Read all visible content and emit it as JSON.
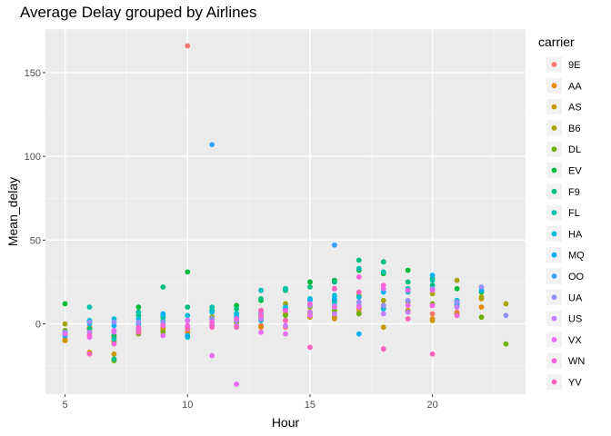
{
  "chart_data": {
    "type": "scatter",
    "title": "Average Delay grouped by Airlines",
    "xlabel": "Hour",
    "ylabel": "Mean_delay",
    "xlim": [
      4.2,
      23.8
    ],
    "ylim": [
      -42,
      176
    ],
    "x_ticks": [
      5,
      10,
      15,
      20
    ],
    "y_ticks": [
      0,
      50,
      100,
      150
    ],
    "grid": true,
    "legend_title": "carrier",
    "legend_position": "right",
    "series": [
      {
        "name": "9E",
        "color": "#F8766D",
        "x": [
          5,
          6,
          7,
          8,
          9,
          10,
          11,
          12,
          13,
          14,
          15,
          16,
          17,
          18,
          19,
          20,
          21
        ],
        "y": [
          -9,
          -3,
          -8,
          -4,
          -2,
          166,
          0,
          3,
          -1,
          -2,
          6,
          4,
          7,
          9,
          7,
          6,
          7
        ]
      },
      {
        "name": "AA",
        "color": "#E58700",
        "x": [
          5,
          6,
          7,
          8,
          9,
          10,
          11,
          12,
          13,
          14,
          15,
          16,
          17,
          18,
          19,
          20,
          21,
          22
        ],
        "y": [
          -10,
          -2,
          -10,
          -5,
          -4,
          -5,
          4,
          2,
          -2,
          2,
          7,
          4,
          9,
          11,
          8,
          3,
          6,
          10
        ]
      },
      {
        "name": "AS",
        "color": "#C99800",
        "x": [
          5,
          6,
          7,
          8,
          9,
          10,
          11,
          12,
          13,
          14,
          15,
          16,
          17,
          18,
          19,
          20,
          21,
          22
        ],
        "y": [
          -10,
          -17,
          -18,
          -3,
          -3,
          -2,
          -1,
          1,
          5,
          6,
          4,
          3,
          9,
          -2,
          8,
          2,
          6,
          15
        ]
      },
      {
        "name": "B6",
        "color": "#A3A500",
        "x": [
          5,
          6,
          7,
          8,
          9,
          10,
          11,
          12,
          13,
          14,
          15,
          16,
          17,
          18,
          19,
          20,
          21,
          22,
          23
        ],
        "y": [
          0,
          -3,
          -11,
          -3,
          0,
          2,
          4,
          3,
          8,
          12,
          10,
          14,
          17,
          14,
          13,
          18,
          26,
          16,
          12
        ]
      },
      {
        "name": "DL",
        "color": "#6BB100",
        "x": [
          5,
          6,
          7,
          8,
          9,
          10,
          11,
          12,
          13,
          14,
          15,
          16,
          17,
          18,
          19,
          20,
          21,
          22,
          23
        ],
        "y": [
          -4,
          -5,
          -22,
          -6,
          -5,
          -3,
          -1,
          1,
          4,
          5,
          6,
          8,
          6,
          9,
          7,
          12,
          11,
          4,
          -12
        ]
      },
      {
        "name": "EV",
        "color": "#00BA38",
        "x": [
          5,
          6,
          7,
          8,
          9,
          10,
          11,
          12,
          13,
          14,
          15,
          16,
          17,
          18,
          19,
          20,
          21,
          22
        ],
        "y": [
          12,
          2,
          -7,
          10,
          4,
          31,
          8,
          11,
          14,
          21,
          25,
          26,
          32,
          30,
          32,
          27,
          21,
          19
        ]
      },
      {
        "name": "F9",
        "color": "#00BF7D",
        "x": [
          5,
          6,
          7,
          8,
          9,
          10,
          11,
          12,
          13,
          14,
          15,
          16,
          17,
          18,
          19,
          20,
          21
        ],
        "y": [
          -5,
          -3,
          -21,
          5,
          22,
          10,
          8,
          9,
          15,
          20,
          22,
          25,
          38,
          37,
          25,
          23,
          14
        ]
      },
      {
        "name": "FL",
        "color": "#00C0AF",
        "x": [
          5,
          6,
          7,
          8,
          9,
          10,
          11,
          12,
          13,
          14,
          15,
          16,
          17,
          18,
          19,
          20,
          21
        ],
        "y": [
          -7,
          10,
          -9,
          7,
          2,
          -8,
          10,
          6,
          20,
          21,
          15,
          13,
          33,
          31,
          21,
          26,
          13
        ]
      },
      {
        "name": "HA",
        "color": "#00BCD8",
        "x": [
          5,
          6,
          7,
          8,
          9,
          10,
          11,
          12,
          13,
          14,
          15,
          16,
          17,
          18,
          19,
          20,
          21
        ],
        "y": [
          -5,
          2,
          3,
          3,
          5,
          5,
          7,
          6,
          2,
          10,
          15,
          17,
          16,
          9,
          19,
          21,
          14
        ]
      },
      {
        "name": "MQ",
        "color": "#00B0F6",
        "x": [
          5,
          6,
          7,
          8,
          9,
          10,
          11,
          12,
          13,
          14,
          15,
          16,
          17,
          18,
          19,
          20,
          21,
          22
        ],
        "y": [
          -7,
          0,
          -1,
          0,
          6,
          -7,
          3,
          4,
          6,
          9,
          14,
          15,
          -6,
          19,
          20,
          29,
          12,
          20
        ]
      },
      {
        "name": "OO",
        "color": "#35A2FF",
        "x": [
          11,
          16
        ],
        "y": [
          107,
          47
        ]
      },
      {
        "name": "UA",
        "color": "#9590FF",
        "x": [
          5,
          6,
          7,
          8,
          9,
          10,
          11,
          12,
          13,
          14,
          15,
          16,
          17,
          18,
          19,
          20,
          21,
          22,
          23
        ],
        "y": [
          -5,
          1,
          1,
          1,
          1,
          2,
          3,
          2,
          7,
          8,
          11,
          11,
          13,
          11,
          14,
          21,
          13,
          22,
          5
        ]
      },
      {
        "name": "US",
        "color": "#C77CFF",
        "x": [
          5,
          6,
          7,
          8,
          9,
          10,
          11,
          12,
          13,
          14,
          15,
          16,
          17,
          18,
          19,
          20,
          21
        ],
        "y": [
          -6,
          -5,
          -5,
          -3,
          -1,
          -2,
          -1,
          -1,
          3,
          -1,
          7,
          6,
          11,
          6,
          7,
          11,
          10
        ]
      },
      {
        "name": "VX",
        "color": "#E76BF3",
        "x": [
          5,
          6,
          7,
          8,
          9,
          10,
          11,
          12,
          13,
          14,
          15,
          16,
          17,
          18,
          19,
          20
        ],
        "y": [
          -6,
          -8,
          -4,
          -5,
          -7,
          2,
          -19,
          -36,
          -5,
          -6,
          5,
          10,
          10,
          21,
          11,
          20
        ]
      },
      {
        "name": "WN",
        "color": "#FA62DB",
        "x": [
          6,
          7,
          8,
          9,
          10,
          11,
          12,
          13,
          14,
          15,
          16,
          17,
          18,
          19,
          20,
          21
        ],
        "y": [
          -7,
          -12,
          -2,
          -1,
          -1,
          1,
          3,
          5,
          8,
          12,
          21,
          28,
          23,
          20,
          11,
          5
        ]
      },
      {
        "name": "YV",
        "color": "#FF62BC",
        "x": [
          6,
          8,
          10,
          11,
          12,
          13,
          14,
          15,
          16,
          17,
          18,
          19,
          20
        ],
        "y": [
          -18,
          -5,
          -3,
          -2,
          -2,
          8,
          2,
          -14,
          21,
          19,
          -15,
          3,
          -18
        ]
      }
    ]
  }
}
